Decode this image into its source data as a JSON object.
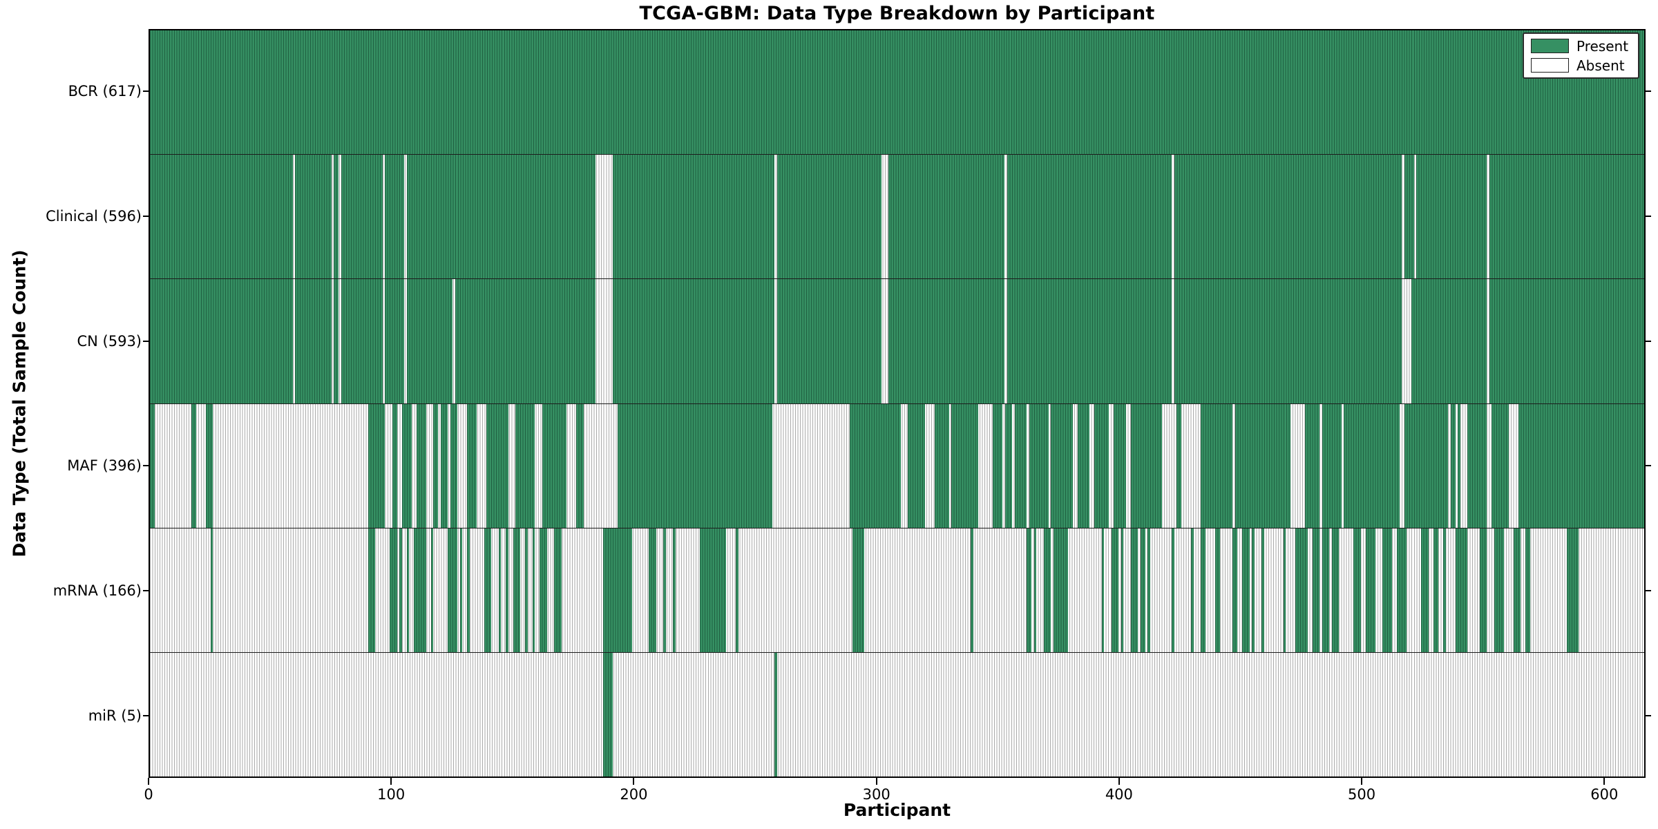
{
  "title": "TCGA-GBM: Data Type Breakdown by Participant",
  "axes": {
    "xlabel": "Participant",
    "ylabel": "Data Type (Total Sample Count)",
    "x_ticks": [
      0,
      100,
      200,
      300,
      400,
      500,
      600
    ],
    "x_range": [
      0,
      617
    ]
  },
  "legend": {
    "items": [
      {
        "label": "Present",
        "color": "#369063"
      },
      {
        "label": "Absent",
        "color": "#ffffff"
      }
    ]
  },
  "colors": {
    "present_fill": "#369063",
    "present_edge": "#1e5f40",
    "absent_fill": "#ffffff",
    "absent_edge": "#a9a9a9",
    "spine": "#000000"
  },
  "chart_data": {
    "type": "heatmap",
    "title": "TCGA-GBM: Data Type Breakdown by Participant",
    "xlabel": "Participant",
    "ylabel": "Data Type (Total Sample Count)",
    "x_range": [
      0,
      617
    ],
    "x_ticks": [
      0,
      100,
      200,
      300,
      400,
      500,
      600
    ],
    "legend_position": "upper right",
    "grid": false,
    "categories": [
      "BCR (617)",
      "Clinical (596)",
      "CN (593)",
      "MAF (396)",
      "mRNA (166)",
      "miR (5)"
    ],
    "rows": [
      {
        "label": "BCR (617)",
        "data_type": "BCR",
        "total": 617,
        "present_runs": [
          [
            0,
            617
          ]
        ]
      },
      {
        "label": "Clinical (596)",
        "data_type": "Clinical",
        "total": 596,
        "present_runs": [
          [
            0,
            59
          ],
          [
            60,
            75
          ],
          [
            76,
            78
          ],
          [
            79,
            96
          ],
          [
            97,
            105
          ],
          [
            106,
            184
          ],
          [
            191,
            258
          ],
          [
            259,
            302
          ],
          [
            305,
            353
          ],
          [
            354,
            422
          ],
          [
            423,
            517
          ],
          [
            518,
            522
          ],
          [
            523,
            552
          ],
          [
            553,
            617
          ]
        ]
      },
      {
        "label": "CN (593)",
        "data_type": "CN",
        "total": 593,
        "present_runs": [
          [
            0,
            59
          ],
          [
            60,
            75
          ],
          [
            76,
            78
          ],
          [
            79,
            96
          ],
          [
            97,
            105
          ],
          [
            106,
            125
          ],
          [
            126,
            184
          ],
          [
            191,
            258
          ],
          [
            259,
            302
          ],
          [
            305,
            353
          ],
          [
            354,
            422
          ],
          [
            423,
            517
          ],
          [
            521,
            552
          ],
          [
            553,
            617
          ]
        ]
      },
      {
        "label": "MAF (396)",
        "data_type": "MAF",
        "total": 396,
        "present_runs": [
          [
            0,
            2
          ],
          [
            17,
            19
          ],
          [
            23,
            26
          ],
          [
            90,
            97
          ],
          [
            100,
            102
          ],
          [
            104,
            108
          ],
          [
            110,
            114
          ],
          [
            117,
            119
          ],
          [
            120,
            123
          ],
          [
            124,
            127
          ],
          [
            131,
            135
          ],
          [
            139,
            148
          ],
          [
            151,
            159
          ],
          [
            162,
            172
          ],
          [
            176,
            179
          ],
          [
            193,
            257
          ],
          [
            289,
            310
          ],
          [
            313,
            320
          ],
          [
            324,
            330
          ],
          [
            331,
            342
          ],
          [
            348,
            352
          ],
          [
            353,
            356
          ],
          [
            357,
            362
          ],
          [
            363,
            371
          ],
          [
            372,
            381
          ],
          [
            383,
            388
          ],
          [
            390,
            396
          ],
          [
            398,
            403
          ],
          [
            405,
            418
          ],
          [
            424,
            426
          ],
          [
            434,
            447
          ],
          [
            448,
            471
          ],
          [
            477,
            483
          ],
          [
            484,
            492
          ],
          [
            493,
            516
          ],
          [
            518,
            536
          ],
          [
            537,
            539
          ],
          [
            540,
            541
          ],
          [
            544,
            552
          ],
          [
            554,
            561
          ],
          [
            565,
            617
          ]
        ]
      },
      {
        "label": "mRNA (166)",
        "data_type": "mRNA",
        "total": 166,
        "present_runs": [
          [
            25,
            26
          ],
          [
            90,
            93
          ],
          [
            99,
            102
          ],
          [
            103,
            104
          ],
          [
            106,
            107
          ],
          [
            109,
            114
          ],
          [
            116,
            117
          ],
          [
            123,
            127
          ],
          [
            128,
            129
          ],
          [
            131,
            132
          ],
          [
            138,
            141
          ],
          [
            144,
            145
          ],
          [
            147,
            148
          ],
          [
            150,
            153
          ],
          [
            155,
            156
          ],
          [
            158,
            159
          ],
          [
            161,
            164
          ],
          [
            167,
            170
          ],
          [
            187,
            199
          ],
          [
            206,
            209
          ],
          [
            212,
            213
          ],
          [
            216,
            217
          ],
          [
            227,
            238
          ],
          [
            242,
            243
          ],
          [
            290,
            295
          ],
          [
            339,
            340
          ],
          [
            362,
            364
          ],
          [
            365,
            366
          ],
          [
            369,
            372
          ],
          [
            373,
            379
          ],
          [
            393,
            394
          ],
          [
            397,
            400
          ],
          [
            401,
            402
          ],
          [
            405,
            408
          ],
          [
            409,
            411
          ],
          [
            412,
            413
          ],
          [
            422,
            423
          ],
          [
            430,
            431
          ],
          [
            434,
            436
          ],
          [
            440,
            442
          ],
          [
            447,
            449
          ],
          [
            451,
            454
          ],
          [
            455,
            456
          ],
          [
            459,
            460
          ],
          [
            468,
            469
          ],
          [
            473,
            478
          ],
          [
            480,
            483
          ],
          [
            484,
            487
          ],
          [
            488,
            491
          ],
          [
            497,
            500
          ],
          [
            502,
            506
          ],
          [
            509,
            513
          ],
          [
            515,
            519
          ],
          [
            525,
            528
          ],
          [
            530,
            532
          ],
          [
            534,
            535
          ],
          [
            539,
            544
          ],
          [
            549,
            552
          ],
          [
            555,
            559
          ],
          [
            563,
            566
          ],
          [
            568,
            570
          ],
          [
            585,
            590
          ]
        ]
      },
      {
        "label": "miR (5)",
        "data_type": "miR",
        "total": 5,
        "present_runs": [
          [
            187,
            191
          ],
          [
            258,
            259
          ]
        ]
      }
    ]
  }
}
